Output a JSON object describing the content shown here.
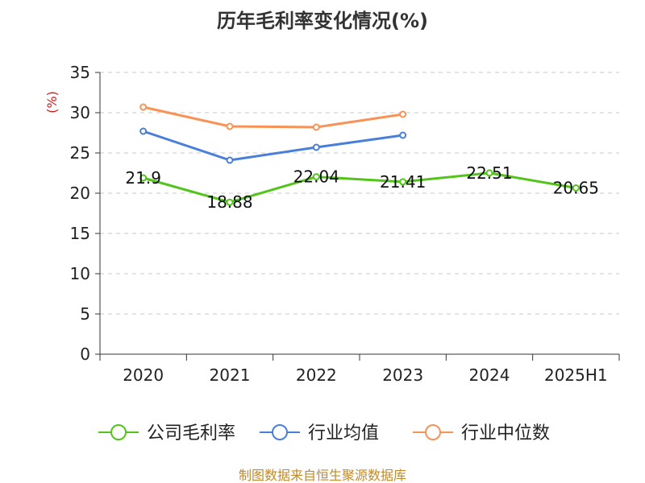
{
  "chart_data": {
    "type": "line",
    "title": "历年毛利率变化情况(%)",
    "ylabel": "(%)",
    "categories": [
      "2020",
      "2021",
      "2022",
      "2023",
      "2024",
      "2025H1"
    ],
    "ylim": [
      0,
      35
    ],
    "yticks": [
      0,
      5,
      10,
      15,
      20,
      25,
      30,
      35
    ],
    "grid": "horizontal-dashed",
    "legend_position": "bottom",
    "series": [
      {
        "name": "公司毛利率",
        "color": "#52c41a",
        "values": [
          21.9,
          18.88,
          22.04,
          21.41,
          22.51,
          20.65
        ],
        "labels": [
          "21.9",
          "18.88",
          "22.04",
          "21.41",
          "22.51",
          "20.65"
        ]
      },
      {
        "name": "行业均值",
        "color": "#4a7fd9",
        "values": [
          27.7,
          24.1,
          25.7,
          27.2,
          null,
          null
        ]
      },
      {
        "name": "行业中位数",
        "color": "#f79356",
        "values": [
          30.7,
          28.3,
          28.2,
          29.8,
          null,
          null
        ]
      }
    ]
  },
  "footer": {
    "source": "制图数据来自恒生聚源数据库"
  }
}
